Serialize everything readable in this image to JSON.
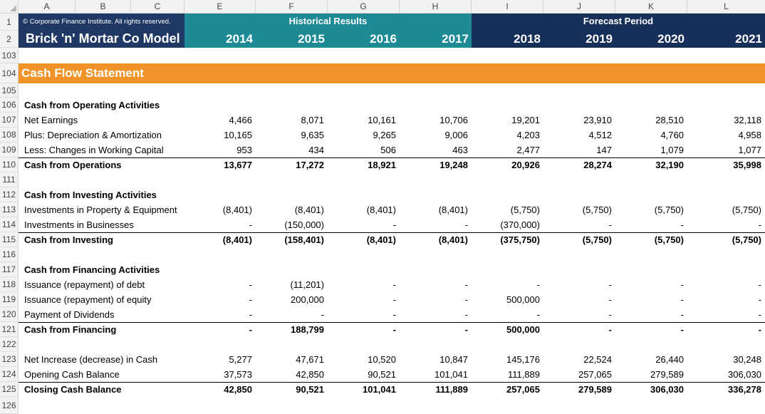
{
  "columns": [
    "A",
    "B",
    "C",
    "E",
    "F",
    "G",
    "H",
    "I",
    "J",
    "K",
    "L"
  ],
  "header": {
    "copyright": "© Corporate Finance Institute. All rights reserved.",
    "model_title": "Brick 'n' Mortar Co Model",
    "historical_label": "Historical Results",
    "forecast_label": "Forecast Period",
    "years": [
      "2014",
      "2015",
      "2016",
      "2017",
      "2018",
      "2019",
      "2020",
      "2021"
    ]
  },
  "section_title": "Cash Flow Statement",
  "rows": [
    {
      "n": "1"
    },
    {
      "n": "2"
    },
    {
      "n": "103"
    },
    {
      "n": "104"
    },
    {
      "n": "105"
    },
    {
      "n": "106",
      "label": "Cash from Operating Activities",
      "bold": true,
      "values": []
    },
    {
      "n": "107",
      "label": "Net Earnings",
      "values": [
        "4,466",
        "8,071",
        "10,161",
        "10,706",
        "19,201",
        "23,910",
        "28,510",
        "32,118"
      ]
    },
    {
      "n": "108",
      "label": "Plus: Depreciation & Amortization",
      "values": [
        "10,165",
        "9,635",
        "9,265",
        "9,006",
        "4,203",
        "4,512",
        "4,760",
        "4,958"
      ]
    },
    {
      "n": "109",
      "label": "Less: Changes in Working Capital",
      "values": [
        "953",
        "434",
        "506",
        "463",
        "2,477",
        "147",
        "1,079",
        "1,077"
      ]
    },
    {
      "n": "110",
      "label": "Cash from Operations",
      "bold": true,
      "total": true,
      "values": [
        "13,677",
        "17,272",
        "18,921",
        "19,248",
        "20,926",
        "28,274",
        "32,190",
        "35,998"
      ]
    },
    {
      "n": "111",
      "values": []
    },
    {
      "n": "112",
      "label": "Cash from Investing Activities",
      "bold": true,
      "values": []
    },
    {
      "n": "113",
      "label": "Investments in Property & Equipment",
      "values": [
        "(8,401)",
        "(8,401)",
        "(8,401)",
        "(8,401)",
        "(5,750)",
        "(5,750)",
        "(5,750)",
        "(5,750)"
      ]
    },
    {
      "n": "114",
      "label": "Investments in Businesses",
      "values": [
        "-",
        "(150,000)",
        "-",
        "-",
        "(370,000)",
        "-",
        "-",
        "-"
      ]
    },
    {
      "n": "115",
      "label": "Cash from Investing",
      "bold": true,
      "total": true,
      "values": [
        "(8,401)",
        "(158,401)",
        "(8,401)",
        "(8,401)",
        "(375,750)",
        "(5,750)",
        "(5,750)",
        "(5,750)"
      ]
    },
    {
      "n": "116",
      "values": []
    },
    {
      "n": "117",
      "label": "Cash from Financing Activities",
      "bold": true,
      "values": []
    },
    {
      "n": "118",
      "label": "Issuance (repayment) of debt",
      "values": [
        "-",
        "(11,201)",
        "-",
        "-",
        "-",
        "-",
        "-",
        "-"
      ]
    },
    {
      "n": "119",
      "label": "Issuance (repayment) of equity",
      "values": [
        "-",
        "200,000",
        "-",
        "-",
        "500,000",
        "-",
        "-",
        "-"
      ]
    },
    {
      "n": "120",
      "label": "Payment of Dividends",
      "values": [
        "-",
        "-",
        "-",
        "-",
        "-",
        "-",
        "-",
        "-"
      ]
    },
    {
      "n": "121",
      "label": "Cash from Financing",
      "bold": true,
      "total": true,
      "values": [
        "-",
        "188,799",
        "-",
        "-",
        "500,000",
        "-",
        "-",
        "-"
      ]
    },
    {
      "n": "122",
      "values": []
    },
    {
      "n": "123",
      "label": "Net Increase (decrease) in Cash",
      "values": [
        "5,277",
        "47,671",
        "10,520",
        "10,847",
        "145,176",
        "22,524",
        "26,440",
        "30,248"
      ]
    },
    {
      "n": "124",
      "label": "Opening Cash Balance",
      "values": [
        "37,573",
        "42,850",
        "90,521",
        "101,041",
        "111,889",
        "257,065",
        "279,589",
        "306,030"
      ]
    },
    {
      "n": "125",
      "label": "Closing Cash Balance",
      "bold": true,
      "total": true,
      "values": [
        "42,850",
        "90,521",
        "101,041",
        "111,889",
        "257,065",
        "279,589",
        "306,030",
        "336,278"
      ]
    },
    {
      "n": "126",
      "values": []
    }
  ],
  "colors": {
    "teal": "#1e8a96",
    "navy": "#17305a",
    "dark": "#1f3864",
    "orange": "#f0942a"
  }
}
